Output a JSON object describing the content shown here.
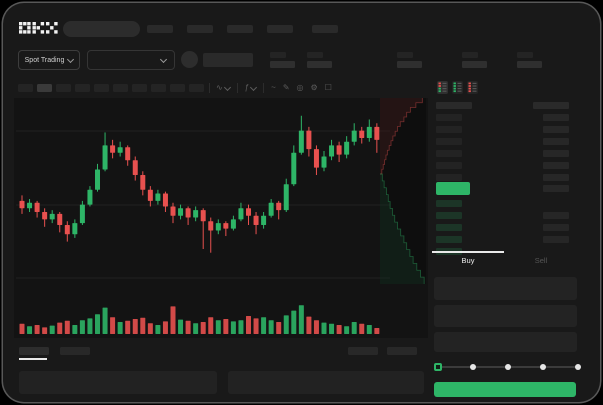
{
  "app": {
    "logo_label": "OKX"
  },
  "colors": {
    "up_green": "#2eb567",
    "down_red": "#e8514f",
    "accent_button": "#2eb567",
    "last_price_badge": "#2eb567",
    "bid_row_tint": "#1c3527",
    "active_tab_line": "#e9e9e9",
    "screen_bg": "#191919",
    "outer_bg": "#000000",
    "skeleton": "#2a2a2a",
    "skeleton_dim": "#232323"
  },
  "top_nav": {
    "search_value": "",
    "nav_placeholder_count": 5
  },
  "market_bar": {
    "market_selector_label": "Spot Trading",
    "pair_selector_value": "",
    "stat_placeholder_count": 5
  },
  "chart_toolbar": {
    "timeframe_placeholder_count": 10,
    "active_timeframe_index": 1,
    "icons": [
      {
        "name": "chart-type-icon",
        "glyph": "∿",
        "dropdown": true
      },
      {
        "name": "indicators-icon",
        "glyph": "ƒ",
        "dropdown": true
      },
      {
        "name": "line-style-icon",
        "glyph": "~",
        "dropdown": false
      },
      {
        "name": "draw-icon",
        "glyph": "✎",
        "dropdown": false
      },
      {
        "name": "snapshot-icon",
        "glyph": "◎",
        "dropdown": false
      },
      {
        "name": "settings-icon",
        "glyph": "⚙",
        "dropdown": false
      },
      {
        "name": "fullscreen-icon",
        "glyph": "☐",
        "dropdown": false
      }
    ]
  },
  "order_book": {
    "view_modes": [
      "book-both",
      "book-bids",
      "book-asks"
    ],
    "active_view_index": 0,
    "ask_row_count": 6,
    "bid_row_count": 5,
    "bid_right_bar_rows": [
      1,
      2,
      3
    ],
    "last_price_direction": "up"
  },
  "trade_panel": {
    "buy_tab_label": "Buy",
    "sell_tab_label": "Sell",
    "active_tab": "Buy",
    "field_count": 3,
    "slider_stop_count": 5,
    "slider_active_stop": 0,
    "submit_button_label": ""
  },
  "bottom_bar": {
    "tab_placeholder_count": 2,
    "active_tab_index": 0,
    "right_placeholder_count": 2,
    "panel_count": 2
  },
  "chart_data": {
    "type": "candlestick",
    "value_scale": "relative 0-100 (no axis labels visible in screenshot)",
    "candles_ohlc": [
      [
        46,
        49,
        39,
        42
      ],
      [
        42,
        47,
        40,
        45
      ],
      [
        45,
        46,
        37,
        40
      ],
      [
        40,
        42,
        32,
        36
      ],
      [
        36,
        41,
        34,
        39
      ],
      [
        39,
        40,
        29,
        33
      ],
      [
        33,
        35,
        24,
        28
      ],
      [
        28,
        36,
        26,
        34
      ],
      [
        34,
        46,
        33,
        44
      ],
      [
        44,
        54,
        43,
        52
      ],
      [
        52,
        66,
        51,
        63
      ],
      [
        63,
        83,
        62,
        76
      ],
      [
        76,
        79,
        69,
        72
      ],
      [
        72,
        78,
        70,
        75
      ],
      [
        75,
        76,
        65,
        68
      ],
      [
        68,
        70,
        57,
        60
      ],
      [
        60,
        62,
        49,
        52
      ],
      [
        52,
        54,
        43,
        46
      ],
      [
        46,
        52,
        44,
        50
      ],
      [
        50,
        51,
        40,
        43
      ],
      [
        43,
        45,
        34,
        38
      ],
      [
        38,
        44,
        36,
        42
      ],
      [
        42,
        43,
        33,
        37
      ],
      [
        37,
        43,
        35,
        41
      ],
      [
        41,
        42,
        20,
        35
      ],
      [
        35,
        37,
        18,
        30
      ],
      [
        30,
        36,
        28,
        34
      ],
      [
        34,
        35,
        27,
        31
      ],
      [
        31,
        38,
        30,
        36
      ],
      [
        36,
        45,
        35,
        42
      ],
      [
        42,
        44,
        33,
        38
      ],
      [
        38,
        40,
        28,
        33
      ],
      [
        33,
        40,
        31,
        38
      ],
      [
        38,
        47,
        37,
        45
      ],
      [
        45,
        46,
        36,
        41
      ],
      [
        41,
        58,
        40,
        55
      ],
      [
        55,
        76,
        54,
        72
      ],
      [
        72,
        92,
        71,
        84
      ],
      [
        84,
        86,
        70,
        74
      ],
      [
        74,
        76,
        60,
        64
      ],
      [
        64,
        73,
        62,
        70
      ],
      [
        70,
        79,
        68,
        76
      ],
      [
        76,
        78,
        67,
        71
      ],
      [
        71,
        81,
        69,
        78
      ],
      [
        78,
        88,
        76,
        84
      ],
      [
        84,
        86,
        77,
        80
      ],
      [
        80,
        90,
        78,
        86
      ],
      [
        86,
        88,
        72,
        79
      ]
    ],
    "volume": [
      34,
      26,
      30,
      22,
      28,
      38,
      44,
      30,
      46,
      52,
      66,
      88,
      56,
      40,
      44,
      50,
      54,
      36,
      30,
      42,
      92,
      48,
      44,
      36,
      40,
      56,
      46,
      50,
      42,
      46,
      60,
      52,
      56,
      46,
      40,
      62,
      78,
      96,
      58,
      46,
      38,
      34,
      30,
      26,
      40,
      34,
      30,
      20
    ],
    "depth_asks_cumulative": [
      0.04,
      0.07,
      0.1,
      0.13,
      0.16,
      0.2,
      0.24,
      0.28,
      0.33,
      0.38,
      0.44,
      0.52,
      0.58,
      0.66,
      0.78,
      0.92
    ],
    "depth_bids_cumulative": [
      0.05,
      0.09,
      0.14,
      0.18,
      0.22,
      0.27,
      0.32,
      0.38,
      0.45,
      0.52,
      0.58,
      0.65,
      0.72,
      0.8,
      0.88,
      0.96
    ]
  }
}
